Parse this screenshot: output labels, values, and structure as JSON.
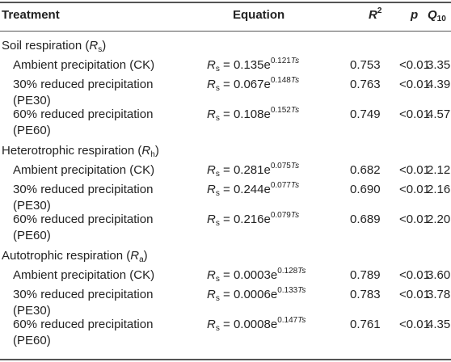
{
  "header": {
    "treatment": "Treatment",
    "equation": "Equation",
    "r2_base": "R",
    "r2_sup": "2",
    "p": "p",
    "q_base": "Q",
    "q_sub": "10"
  },
  "sections": [
    {
      "title": "Soil respiration (",
      "sym_base": "R",
      "sym_sub": "s",
      "title_end": ")",
      "rows": [
        {
          "line1": "Ambient precipitation (CK)",
          "line2": "",
          "coef": "0.135e",
          "exp": "0.121",
          "r2": "0.753",
          "p": "<0.01",
          "q10": "3.35"
        },
        {
          "line1": "30% reduced precipitation",
          "line2": "(PE30)",
          "coef": "0.067e",
          "exp": "0.148",
          "r2": "0.763",
          "p": "<0.01",
          "q10": "4.39"
        },
        {
          "line1": "60% reduced precipitation",
          "line2": "(PE60)",
          "coef": "0.108e",
          "exp": "0.152",
          "r2": "0.749",
          "p": "<0.01",
          "q10": "4.57"
        }
      ]
    },
    {
      "title": "Heterotrophic respiration (",
      "sym_base": "R",
      "sym_sub": "h",
      "title_end": ")",
      "rows": [
        {
          "line1": "Ambient precipitation (CK)",
          "line2": "",
          "coef": "0.281e",
          "exp": "0.075",
          "r2": "0.682",
          "p": "<0.01",
          "q10": "2.12"
        },
        {
          "line1": "30% reduced precipitation",
          "line2": "(PE30)",
          "coef": "0.244e",
          "exp": "0.077",
          "r2": "0.690",
          "p": "<0.01",
          "q10": "2.16"
        },
        {
          "line1": "60% reduced precipitation",
          "line2": "(PE60)",
          "coef": "0.216e",
          "exp": "0.079",
          "r2": "0.689",
          "p": "<0.01",
          "q10": "2.20"
        }
      ]
    },
    {
      "title": "Autotrophic respiration (",
      "sym_base": "R",
      "sym_sub": "a",
      "title_end": ")",
      "rows": [
        {
          "line1": "Ambient precipitation (CK)",
          "line2": "",
          "coef": "0.0003e",
          "exp": "0.128",
          "r2": "0.789",
          "p": "<0.01",
          "q10": "3.60"
        },
        {
          "line1": "30% reduced precipitation",
          "line2": "(PE30)",
          "coef": "0.0006e",
          "exp": "0.133",
          "r2": "0.783",
          "p": "<0.01",
          "q10": "3.78"
        },
        {
          "line1": "60% reduced precipitation",
          "line2": "(PE60)",
          "coef": "0.0008e",
          "exp": "0.147",
          "r2": "0.761",
          "p": "<0.01",
          "q10": "4.35"
        }
      ]
    }
  ],
  "eq": {
    "lhs_base": "R",
    "lhs_sub": "s",
    "equals": " = ",
    "exp_var_base": "T",
    "exp_var_sub": "s"
  }
}
